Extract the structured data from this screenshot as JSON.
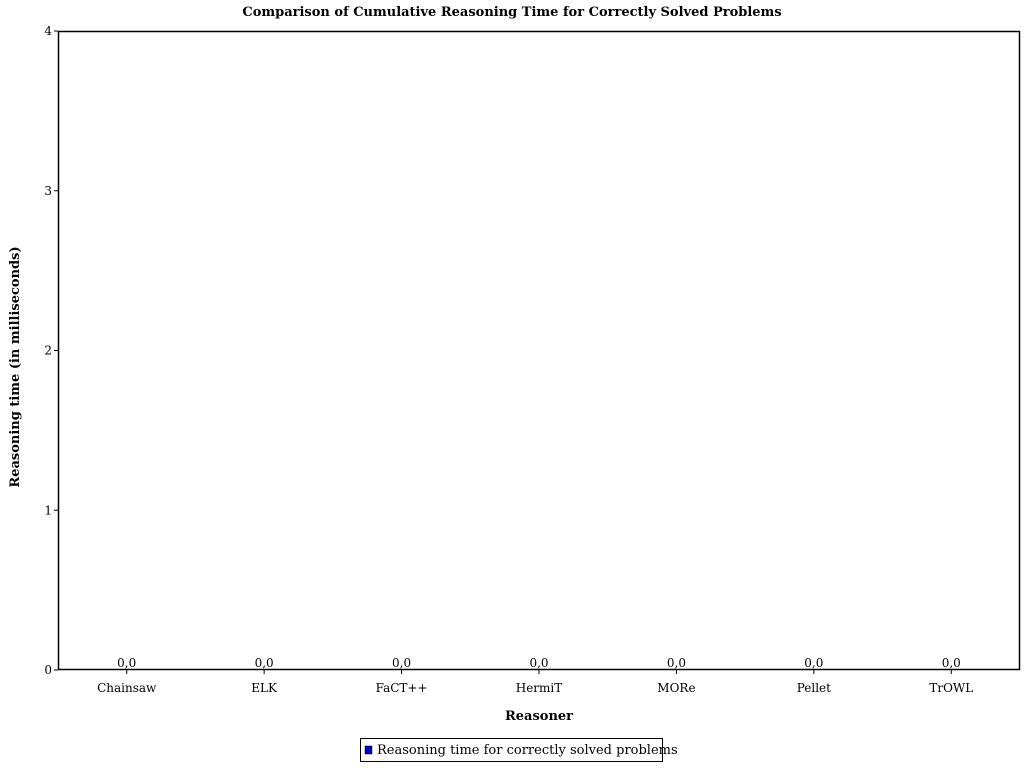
{
  "chart_data": {
    "type": "bar",
    "title": "Comparison of Cumulative Reasoning Time for Correctly Solved Problems",
    "xlabel": "Reasoner",
    "ylabel": "Reasoning time (in milliseconds)",
    "categories": [
      "Chainsaw",
      "ELK",
      "FaCT++",
      "HermiT",
      "MORe",
      "Pellet",
      "TrOWL"
    ],
    "series": [
      {
        "name": "Reasoning time for correctly solved problems",
        "values": [
          0.0,
          0.0,
          0.0,
          0.0,
          0.0,
          0.0,
          0.0
        ],
        "labels": [
          "0,0",
          "0,0",
          "0,0",
          "0,0",
          "0,0",
          "0,0",
          "0,0"
        ],
        "color": "#0000cc"
      }
    ],
    "ylim": [
      0,
      4
    ],
    "yticks": [
      0,
      1,
      2,
      3,
      4
    ],
    "grid": false,
    "legend_position": "bottom-center"
  }
}
